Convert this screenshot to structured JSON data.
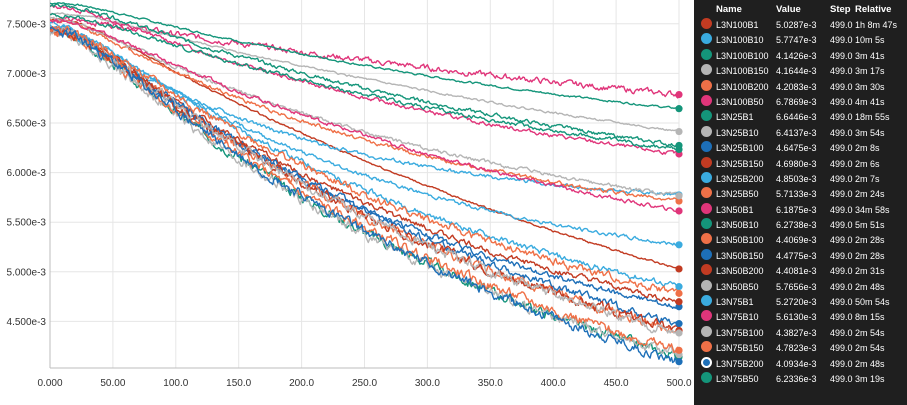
{
  "chart_data": {
    "type": "line",
    "xlim": [
      0,
      500
    ],
    "ylim": [
      0.00403,
      0.00774
    ],
    "x_ticks": [
      "0.000",
      "50.00",
      "100.0",
      "150.0",
      "200.0",
      "250.0",
      "300.0",
      "350.0",
      "400.0",
      "450.0",
      "500.0"
    ],
    "y_ticks": [
      {
        "v": 0.0075,
        "label": "7.500e-3"
      },
      {
        "v": 0.007,
        "label": "7.000e-3"
      },
      {
        "v": 0.0065,
        "label": "6.500e-3"
      },
      {
        "v": 0.006,
        "label": "6.000e-3"
      },
      {
        "v": 0.0055,
        "label": "5.500e-3"
      },
      {
        "v": 0.005,
        "label": "5.000e-3"
      },
      {
        "v": 0.0045,
        "label": "4.500e-3"
      }
    ],
    "grid": true,
    "series": [
      {
        "name": "L3N100B1",
        "color": "#c23b22",
        "start": 0.00775,
        "end": 0.0050287,
        "k": 0.8,
        "noise": 1e-05
      },
      {
        "name": "L3N100B10",
        "color": "#3aabdf",
        "start": 0.0076,
        "end": 0.0057747,
        "k": 2.5,
        "noise": 2e-05
      },
      {
        "name": "L3N100B100",
        "color": "#14957a",
        "start": 0.0077,
        "end": 0.0041426,
        "k": 1.2,
        "noise": 5e-05
      },
      {
        "name": "L3N100B150",
        "color": "#b5b5b5",
        "start": 0.0077,
        "end": 0.0041644,
        "k": 1.3,
        "noise": 5e-05
      },
      {
        "name": "L3N100B200",
        "color": "#ef7047",
        "start": 0.0077,
        "end": 0.0042083,
        "k": 1.2,
        "noise": 5e-05
      },
      {
        "name": "L3N100B50",
        "color": "#e0357a",
        "start": 0.0076,
        "end": 0.0067869,
        "k": 0.6,
        "noise": 3e-05
      },
      {
        "name": "L3N25B1",
        "color": "#14957a",
        "start": 0.0078,
        "end": 0.0066446,
        "k": 1.0,
        "noise": 1e-05
      },
      {
        "name": "L3N25B10",
        "color": "#b5b5b5",
        "start": 0.0077,
        "end": 0.0064137,
        "k": 0.7,
        "noise": 1e-05
      },
      {
        "name": "L3N25B100",
        "color": "#1d6fb8",
        "start": 0.0077,
        "end": 0.0046475,
        "k": 1.5,
        "noise": 3e-05
      },
      {
        "name": "L3N25B150",
        "color": "#c23b22",
        "start": 0.0077,
        "end": 0.004698,
        "k": 1.4,
        "noise": 3e-05
      },
      {
        "name": "L3N25B200",
        "color": "#3aabdf",
        "start": 0.0077,
        "end": 0.0048503,
        "k": 1.3,
        "noise": 3e-05
      },
      {
        "name": "L3N25B50",
        "color": "#ef7047",
        "start": 0.0077,
        "end": 0.0057133,
        "k": 1.6,
        "noise": 2e-05
      },
      {
        "name": "L3N50B1",
        "color": "#e0357a",
        "start": 0.0078,
        "end": 0.0061875,
        "k": 1.2,
        "noise": 2e-05
      },
      {
        "name": "L3N50B10",
        "color": "#14957a",
        "start": 0.0078,
        "end": 0.0062738,
        "k": 1.0,
        "noise": 2e-05
      },
      {
        "name": "L3N50B100",
        "color": "#ef7047",
        "start": 0.0077,
        "end": 0.0044069,
        "k": 1.2,
        "noise": 5e-05
      },
      {
        "name": "L3N50B150",
        "color": "#1d6fb8",
        "start": 0.0077,
        "end": 0.0044775,
        "k": 1.2,
        "noise": 4e-05
      },
      {
        "name": "L3N50B200",
        "color": "#c23b22",
        "start": 0.0077,
        "end": 0.0044081,
        "k": 1.2,
        "noise": 5e-05
      },
      {
        "name": "L3N50B50",
        "color": "#b5b5b5",
        "start": 0.0077,
        "end": 0.0057656,
        "k": 1.4,
        "noise": 2e-05
      },
      {
        "name": "L3N75B1",
        "color": "#3aabdf",
        "start": 0.0077,
        "end": 0.005272,
        "k": 1.8,
        "noise": 2e-05
      },
      {
        "name": "L3N75B10",
        "color": "#e0357a",
        "start": 0.0077,
        "end": 0.005613,
        "k": 1.1,
        "noise": 2e-05
      },
      {
        "name": "L3N75B100",
        "color": "#b5b5b5",
        "start": 0.0077,
        "end": 0.0043827,
        "k": 1.2,
        "noise": 5e-05
      },
      {
        "name": "L3N75B150",
        "color": "#ef7047",
        "start": 0.0077,
        "end": 0.0047823,
        "k": 1.3,
        "noise": 4e-05
      },
      {
        "name": "L3N75B200",
        "color": "#1d6fb8",
        "start": 0.0077,
        "end": 0.0040934,
        "k": 1.1,
        "noise": 5e-05
      },
      {
        "name": "L3N75B50",
        "color": "#14957a",
        "start": 0.0077,
        "end": 0.0062336,
        "k": 1.0,
        "noise": 2e-05
      }
    ]
  },
  "tooltip": {
    "headers": {
      "name": "Name",
      "value": "Value",
      "step": "Step",
      "relative": "Relative"
    },
    "selected": "L3N75B200",
    "rows": [
      {
        "name": "L3N100B1",
        "value": "5.0287e-3",
        "step": "499.0",
        "relative": "1h 8m 47s",
        "color": "#c23b22"
      },
      {
        "name": "L3N100B10",
        "value": "5.7747e-3",
        "step": "499.0",
        "relative": "10m 5s",
        "color": "#3aabdf"
      },
      {
        "name": "L3N100B100",
        "value": "4.1426e-3",
        "step": "499.0",
        "relative": "3m 41s",
        "color": "#14957a"
      },
      {
        "name": "L3N100B150",
        "value": "4.1644e-3",
        "step": "499.0",
        "relative": "3m 17s",
        "color": "#b5b5b5"
      },
      {
        "name": "L3N100B200",
        "value": "4.2083e-3",
        "step": "499.0",
        "relative": "3m 30s",
        "color": "#ef7047"
      },
      {
        "name": "L3N100B50",
        "value": "6.7869e-3",
        "step": "499.0",
        "relative": "4m 41s",
        "color": "#e0357a"
      },
      {
        "name": "L3N25B1",
        "value": "6.6446e-3",
        "step": "499.0",
        "relative": "18m 55s",
        "color": "#14957a"
      },
      {
        "name": "L3N25B10",
        "value": "6.4137e-3",
        "step": "499.0",
        "relative": "3m 54s",
        "color": "#b5b5b5"
      },
      {
        "name": "L3N25B100",
        "value": "4.6475e-3",
        "step": "499.0",
        "relative": "2m 8s",
        "color": "#1d6fb8"
      },
      {
        "name": "L3N25B150",
        "value": "4.6980e-3",
        "step": "499.0",
        "relative": "2m 6s",
        "color": "#c23b22"
      },
      {
        "name": "L3N25B200",
        "value": "4.8503e-3",
        "step": "499.0",
        "relative": "2m 7s",
        "color": "#3aabdf"
      },
      {
        "name": "L3N25B50",
        "value": "5.7133e-3",
        "step": "499.0",
        "relative": "2m 24s",
        "color": "#ef7047"
      },
      {
        "name": "L3N50B1",
        "value": "6.1875e-3",
        "step": "499.0",
        "relative": "34m 58s",
        "color": "#e0357a"
      },
      {
        "name": "L3N50B10",
        "value": "6.2738e-3",
        "step": "499.0",
        "relative": "5m 51s",
        "color": "#14957a"
      },
      {
        "name": "L3N50B100",
        "value": "4.4069e-3",
        "step": "499.0",
        "relative": "2m 28s",
        "color": "#ef7047"
      },
      {
        "name": "L3N50B150",
        "value": "4.4775e-3",
        "step": "499.0",
        "relative": "2m 28s",
        "color": "#1d6fb8"
      },
      {
        "name": "L3N50B200",
        "value": "4.4081e-3",
        "step": "499.0",
        "relative": "2m 31s",
        "color": "#c23b22"
      },
      {
        "name": "L3N50B50",
        "value": "5.7656e-3",
        "step": "499.0",
        "relative": "2m 48s",
        "color": "#b5b5b5"
      },
      {
        "name": "L3N75B1",
        "value": "5.2720e-3",
        "step": "499.0",
        "relative": "50m 54s",
        "color": "#3aabdf"
      },
      {
        "name": "L3N75B10",
        "value": "5.6130e-3",
        "step": "499.0",
        "relative": "8m 15s",
        "color": "#e0357a"
      },
      {
        "name": "L3N75B100",
        "value": "4.3827e-3",
        "step": "499.0",
        "relative": "2m 54s",
        "color": "#b5b5b5"
      },
      {
        "name": "L3N75B150",
        "value": "4.7823e-3",
        "step": "499.0",
        "relative": "2m 54s",
        "color": "#ef7047"
      },
      {
        "name": "L3N75B200",
        "value": "4.0934e-3",
        "step": "499.0",
        "relative": "2m 48s",
        "color": "#1d6fb8"
      },
      {
        "name": "L3N75B50",
        "value": "6.2336e-3",
        "step": "499.0",
        "relative": "3m 19s",
        "color": "#14957a"
      }
    ]
  }
}
